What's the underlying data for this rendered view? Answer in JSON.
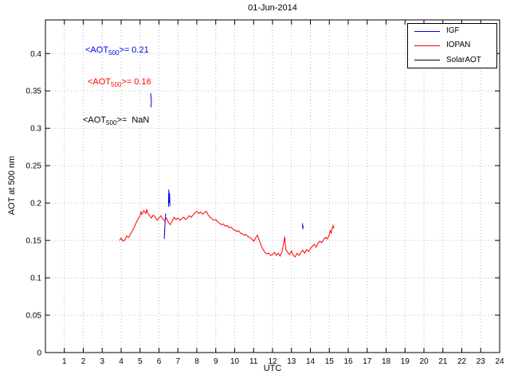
{
  "annotations": [
    {
      "prefix": "<AOT",
      "sub": "500",
      "suffix": ">= 0.21",
      "color": "#0000ee"
    },
    {
      "prefix": "<AOT",
      "sub": "500",
      "suffix": ">= 0.16",
      "color": "#ff0000"
    },
    {
      "prefix": "<AOT",
      "sub": "500",
      "suffix": ">=  NaN",
      "color": "#000000"
    }
  ],
  "chart_data": {
    "type": "line",
    "title": "01-Jun-2014",
    "xlabel": "UTC",
    "ylabel": "AOT at 500 nm",
    "xlim": [
      0,
      24
    ],
    "ylim": [
      0,
      0.445
    ],
    "grid": true,
    "xticks": [
      1,
      2,
      3,
      4,
      5,
      6,
      7,
      8,
      9,
      10,
      11,
      12,
      13,
      14,
      15,
      16,
      17,
      18,
      19,
      20,
      21,
      22,
      23,
      24
    ],
    "xticklabels": [
      "1",
      "2",
      "3",
      "4",
      "5",
      "6",
      "7",
      "8",
      "9",
      "10",
      "11",
      "12",
      "13",
      "14",
      "15",
      "16",
      "17",
      "18",
      "19",
      "20",
      "21",
      "22",
      "23",
      "24"
    ],
    "yticks": [
      0,
      0.05,
      0.1,
      0.15,
      0.2,
      0.25,
      0.3,
      0.35,
      0.4
    ],
    "yticklabels": [
      "0",
      "0.05",
      "0.1",
      "0.15",
      "0.2",
      "0.25",
      "0.3",
      "0.35",
      "0.4"
    ],
    "legend": {
      "position": "top-right",
      "entries": [
        {
          "label": "IGF",
          "color": "#0000ee"
        },
        {
          "label": "IOPAN",
          "color": "#ff0000"
        },
        {
          "label": "SolarAOT",
          "color": "#000000"
        }
      ]
    },
    "series": [
      {
        "name": "IGF",
        "color": "#0000ee",
        "segments": [
          [
            [
              5.56,
              0.347
            ],
            [
              5.6,
              0.336
            ],
            [
              5.58,
              0.328
            ]
          ],
          [
            [
              6.28,
              0.152
            ],
            [
              6.3,
              0.165
            ],
            [
              6.29,
              0.158
            ],
            [
              6.32,
              0.172
            ],
            [
              6.35,
              0.186
            ]
          ],
          [
            [
              6.5,
              0.195
            ],
            [
              6.52,
              0.218
            ],
            [
              6.54,
              0.2
            ],
            [
              6.56,
              0.213
            ],
            [
              6.58,
              0.196
            ]
          ],
          [
            [
              13.58,
              0.173
            ],
            [
              13.6,
              0.165
            ],
            [
              13.62,
              0.17
            ]
          ]
        ]
      },
      {
        "name": "IOPAN",
        "color": "#ff0000",
        "segments": [
          [
            [
              3.92,
              0.15
            ],
            [
              4.0,
              0.153
            ],
            [
              4.1,
              0.149
            ],
            [
              4.2,
              0.151
            ],
            [
              4.3,
              0.156
            ],
            [
              4.4,
              0.154
            ],
            [
              4.5,
              0.159
            ],
            [
              4.6,
              0.163
            ],
            [
              4.7,
              0.168
            ],
            [
              4.8,
              0.174
            ],
            [
              4.9,
              0.179
            ],
            [
              5.0,
              0.183
            ],
            [
              5.05,
              0.188
            ],
            [
              5.1,
              0.185
            ],
            [
              5.2,
              0.19
            ],
            [
              5.3,
              0.186
            ],
            [
              5.35,
              0.191
            ],
            [
              5.4,
              0.187
            ],
            [
              5.5,
              0.183
            ],
            [
              5.6,
              0.18
            ],
            [
              5.7,
              0.184
            ],
            [
              5.8,
              0.181
            ],
            [
              5.9,
              0.177
            ],
            [
              6.0,
              0.18
            ],
            [
              6.1,
              0.183
            ],
            [
              6.2,
              0.179
            ],
            [
              6.3,
              0.176
            ],
            [
              6.4,
              0.18
            ],
            [
              6.5,
              0.174
            ],
            [
              6.6,
              0.171
            ],
            [
              6.7,
              0.176
            ],
            [
              6.8,
              0.181
            ],
            [
              6.9,
              0.178
            ],
            [
              7.0,
              0.18
            ],
            [
              7.1,
              0.177
            ],
            [
              7.2,
              0.179
            ],
            [
              7.3,
              0.181
            ],
            [
              7.4,
              0.178
            ],
            [
              7.5,
              0.18
            ],
            [
              7.6,
              0.183
            ],
            [
              7.7,
              0.181
            ],
            [
              7.8,
              0.184
            ],
            [
              7.9,
              0.187
            ],
            [
              8.0,
              0.189
            ],
            [
              8.1,
              0.186
            ],
            [
              8.2,
              0.188
            ],
            [
              8.3,
              0.185
            ],
            [
              8.4,
              0.187
            ],
            [
              8.5,
              0.189
            ],
            [
              8.6,
              0.184
            ],
            [
              8.7,
              0.181
            ],
            [
              8.8,
              0.179
            ],
            [
              8.9,
              0.177
            ],
            [
              9.0,
              0.178
            ],
            [
              9.1,
              0.175
            ],
            [
              9.2,
              0.173
            ],
            [
              9.3,
              0.171
            ],
            [
              9.4,
              0.172
            ],
            [
              9.5,
              0.169
            ],
            [
              9.6,
              0.17
            ],
            [
              9.7,
              0.167
            ],
            [
              9.8,
              0.168
            ],
            [
              9.9,
              0.165
            ],
            [
              10.0,
              0.164
            ],
            [
              10.1,
              0.162
            ],
            [
              10.2,
              0.163
            ],
            [
              10.3,
              0.16
            ],
            [
              10.4,
              0.159
            ],
            [
              10.5,
              0.157
            ],
            [
              10.6,
              0.158
            ],
            [
              10.7,
              0.155
            ],
            [
              10.8,
              0.154
            ],
            [
              10.9,
              0.152
            ],
            [
              11.0,
              0.149
            ],
            [
              11.1,
              0.153
            ],
            [
              11.2,
              0.157
            ],
            [
              11.3,
              0.15
            ],
            [
              11.4,
              0.143
            ],
            [
              11.5,
              0.138
            ],
            [
              11.6,
              0.134
            ],
            [
              11.7,
              0.132
            ],
            [
              11.8,
              0.133
            ],
            [
              11.9,
              0.13
            ],
            [
              12.0,
              0.131
            ],
            [
              12.1,
              0.134
            ],
            [
              12.2,
              0.13
            ],
            [
              12.3,
              0.133
            ],
            [
              12.4,
              0.129
            ],
            [
              12.5,
              0.135
            ],
            [
              12.6,
              0.148
            ],
            [
              12.65,
              0.155
            ],
            [
              12.7,
              0.138
            ],
            [
              12.8,
              0.134
            ],
            [
              12.9,
              0.131
            ],
            [
              13.0,
              0.136
            ],
            [
              13.1,
              0.13
            ],
            [
              13.2,
              0.128
            ],
            [
              13.3,
              0.133
            ],
            [
              13.4,
              0.13
            ],
            [
              13.5,
              0.134
            ],
            [
              13.6,
              0.137
            ],
            [
              13.7,
              0.133
            ],
            [
              13.8,
              0.138
            ],
            [
              13.9,
              0.135
            ],
            [
              14.0,
              0.139
            ],
            [
              14.1,
              0.142
            ],
            [
              14.2,
              0.145
            ],
            [
              14.3,
              0.141
            ],
            [
              14.4,
              0.146
            ],
            [
              14.5,
              0.149
            ],
            [
              14.6,
              0.147
            ],
            [
              14.7,
              0.151
            ],
            [
              14.8,
              0.154
            ],
            [
              14.9,
              0.152
            ],
            [
              15.0,
              0.158
            ],
            [
              15.05,
              0.163
            ],
            [
              15.1,
              0.16
            ],
            [
              15.15,
              0.166
            ],
            [
              15.2,
              0.17
            ],
            [
              15.25,
              0.166
            ]
          ]
        ]
      },
      {
        "name": "SolarAOT",
        "color": "#000000",
        "segments": []
      }
    ]
  }
}
